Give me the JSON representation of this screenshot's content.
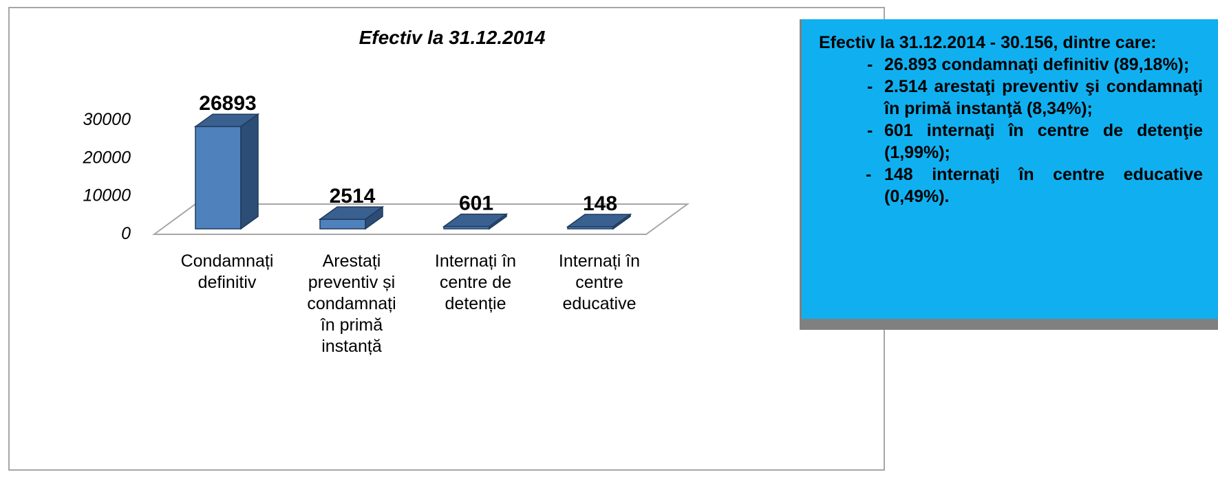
{
  "chart_data": {
    "type": "bar",
    "title": "Efectiv la 31.12.2014",
    "categories": [
      [
        "Condamnați",
        "definitiv"
      ],
      [
        "Arestați",
        "preventiv și",
        "condamnați",
        "în primă",
        "instanță"
      ],
      [
        "Internați în",
        "centre de",
        "detenție"
      ],
      [
        "Internați în",
        "centre",
        "educative"
      ]
    ],
    "values": [
      26893,
      2514,
      601,
      148
    ],
    "data_labels": [
      "26893",
      "2514",
      "601",
      "148"
    ],
    "y_ticks": [
      "0",
      "10000",
      "20000",
      "30000"
    ],
    "ylim": [
      0,
      30000
    ],
    "grid": false,
    "style_3d": true,
    "colors": {
      "bar_front": "#4f81bd",
      "bar_side": "#2c4d75",
      "bar_top": "#3a6090",
      "floor_line": "#a6a6a6"
    }
  },
  "info_box": {
    "heading": "Efectiv la 31.12.2014 - 30.156, dintre care:",
    "items": [
      {
        "dash": "-",
        "text": "26.893 condamnaţi definitiv (89,18%);"
      },
      {
        "dash": "-",
        "text": "2.514 arestaţi preventiv şi condamnaţi în primă instanţă (8,34%);"
      },
      {
        "dash": "-",
        "text": "601 internaţi în centre de detenţie (1,99%);"
      },
      {
        "dash": "-",
        "text": "148 internaţi în centre educative (0,49%)."
      }
    ],
    "background": "#10b0f0"
  }
}
